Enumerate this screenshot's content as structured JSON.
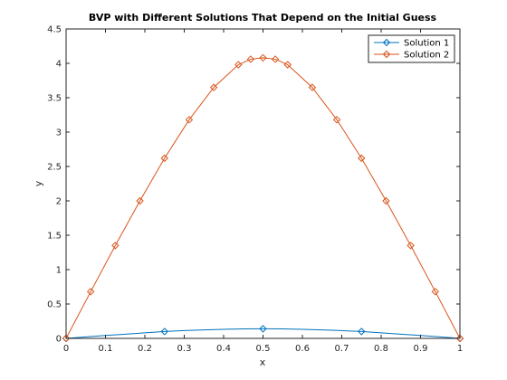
{
  "chart_data": {
    "type": "line",
    "title": "BVP with Different Solutions That Depend on the Initial Guess",
    "xlabel": "x",
    "ylabel": "y",
    "xlim": [
      0,
      1
    ],
    "ylim": [
      0,
      4.5
    ],
    "xticks": [
      0,
      0.1,
      0.2,
      0.3,
      0.4,
      0.5,
      0.6,
      0.7,
      0.8,
      0.9,
      1
    ],
    "xtick_labels": [
      "0",
      "0.1",
      "0.2",
      "0.3",
      "0.4",
      "0.5",
      "0.6",
      "0.7",
      "0.8",
      "0.9",
      "1"
    ],
    "yticks": [
      0,
      0.5,
      1,
      1.5,
      2,
      2.5,
      3,
      3.5,
      4,
      4.5
    ],
    "ytick_labels": [
      "0",
      "0.5",
      "1",
      "1.5",
      "2",
      "2.5",
      "3",
      "3.5",
      "4",
      "4.5"
    ],
    "grid": false,
    "legend_position": "top-right",
    "series": [
      {
        "name": "Solution 1",
        "color": "#0072BD",
        "marker": "diamond",
        "x": [
          0,
          0.25,
          0.5,
          0.75,
          1
        ],
        "y": [
          0,
          0.1,
          0.14,
          0.1,
          0
        ],
        "curve_x": [
          0,
          0.05,
          0.1,
          0.15,
          0.2,
          0.25,
          0.3,
          0.35,
          0.4,
          0.45,
          0.5,
          0.55,
          0.6,
          0.65,
          0.7,
          0.75,
          0.8,
          0.85,
          0.9,
          0.95,
          1
        ],
        "curve_y": [
          0,
          0.021,
          0.042,
          0.061,
          0.081,
          0.1,
          0.113,
          0.124,
          0.132,
          0.138,
          0.14,
          0.138,
          0.132,
          0.124,
          0.113,
          0.1,
          0.081,
          0.061,
          0.042,
          0.021,
          0
        ]
      },
      {
        "name": "Solution 2",
        "color": "#D95319",
        "marker": "diamond",
        "x": [
          0,
          0.0625,
          0.125,
          0.1875,
          0.25,
          0.3125,
          0.375,
          0.4375,
          0.46875,
          0.5,
          0.53125,
          0.5625,
          0.625,
          0.6875,
          0.75,
          0.8125,
          0.875,
          0.9375,
          1
        ],
        "y": [
          0,
          0.68,
          1.35,
          2.0,
          2.62,
          3.18,
          3.65,
          3.98,
          4.06,
          4.08,
          4.06,
          3.98,
          3.65,
          3.18,
          2.62,
          2.0,
          1.35,
          0.68,
          0
        ]
      }
    ]
  }
}
